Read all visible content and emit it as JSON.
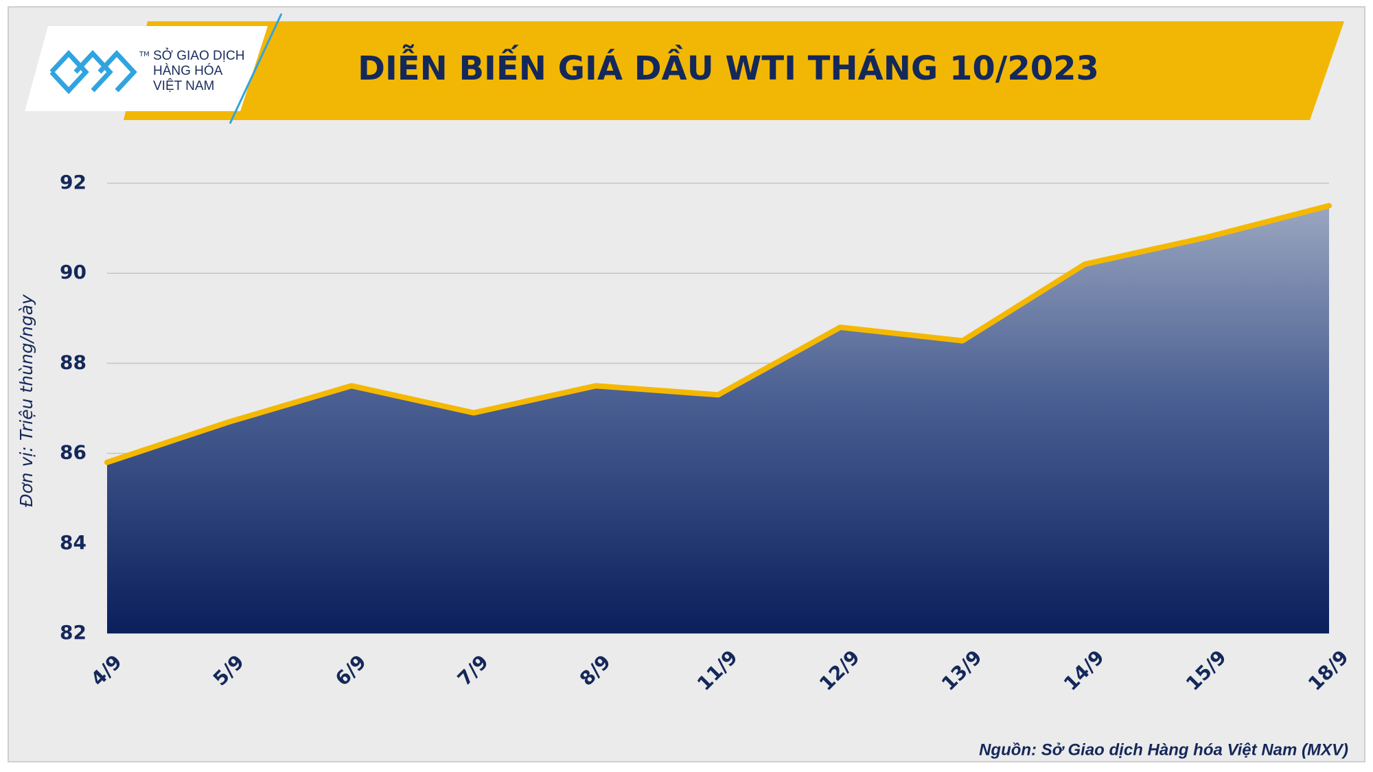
{
  "logo": {
    "lines": [
      "SỞ GIAO DỊCH",
      "HÀNG HÓA",
      "VIỆT NAM"
    ],
    "trademark": "TM"
  },
  "chart_data": {
    "type": "area",
    "title": "DIỄN BIẾN GIÁ DẦU WTI THÁNG 10/2023",
    "y_label": "Đơn vị: Triệu thùng/ngày",
    "source": "Nguồn: Sở Giao dịch Hàng hóa Việt Nam (MXV)",
    "categories": [
      "4/9",
      "5/9",
      "6/9",
      "7/9",
      "8/9",
      "11/9",
      "12/9",
      "13/9",
      "14/9",
      "15/9",
      "18/9"
    ],
    "values": [
      85.8,
      86.7,
      87.5,
      86.9,
      87.5,
      87.3,
      88.8,
      88.5,
      90.2,
      90.8,
      91.5
    ],
    "color": "#f5b800",
    "ylim": [
      82,
      92
    ],
    "yticks": [
      82,
      84,
      86,
      88,
      90,
      92
    ],
    "grid": true
  }
}
